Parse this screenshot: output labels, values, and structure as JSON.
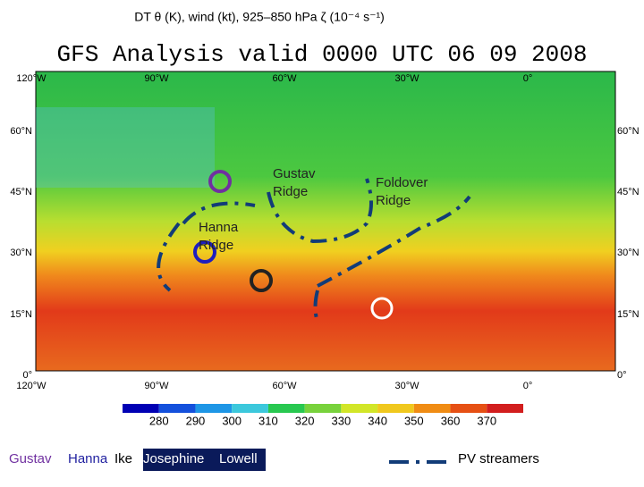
{
  "header": {
    "title": "DT θ (K), wind (kt), 925–850 hPa ζ (10⁻⁴ s⁻¹)"
  },
  "map": {
    "title": "GFS Analysis valid 0000 UTC 06 09 2008",
    "lon_labels_top": [
      "120°W",
      "90°W",
      "60°W",
      "30°W",
      "0°"
    ],
    "lon_labels_bottom": [
      "120°W",
      "90°W",
      "60°W",
      "30°W",
      "0°"
    ],
    "lat_labels_left": [
      "60°N",
      "45°N",
      "30°N",
      "15°N",
      "0°"
    ],
    "lat_labels_right": [
      "60°N",
      "45°N",
      "30°N",
      "15°N",
      "0°"
    ],
    "annotations": [
      [
        "Gustav",
        "Ridge"
      ],
      [
        "Foldover",
        "Ridge"
      ],
      [
        "Hanna",
        "Ridge"
      ]
    ]
  },
  "colorbar": {
    "labels": [
      280,
      290,
      300,
      310,
      320,
      330,
      340,
      350,
      360,
      370
    ]
  },
  "legend": {
    "storms": [
      "Gustav",
      "Hanna",
      "Ike",
      "Josephine",
      "Lowell"
    ],
    "pv_label": "PV streamers"
  }
}
